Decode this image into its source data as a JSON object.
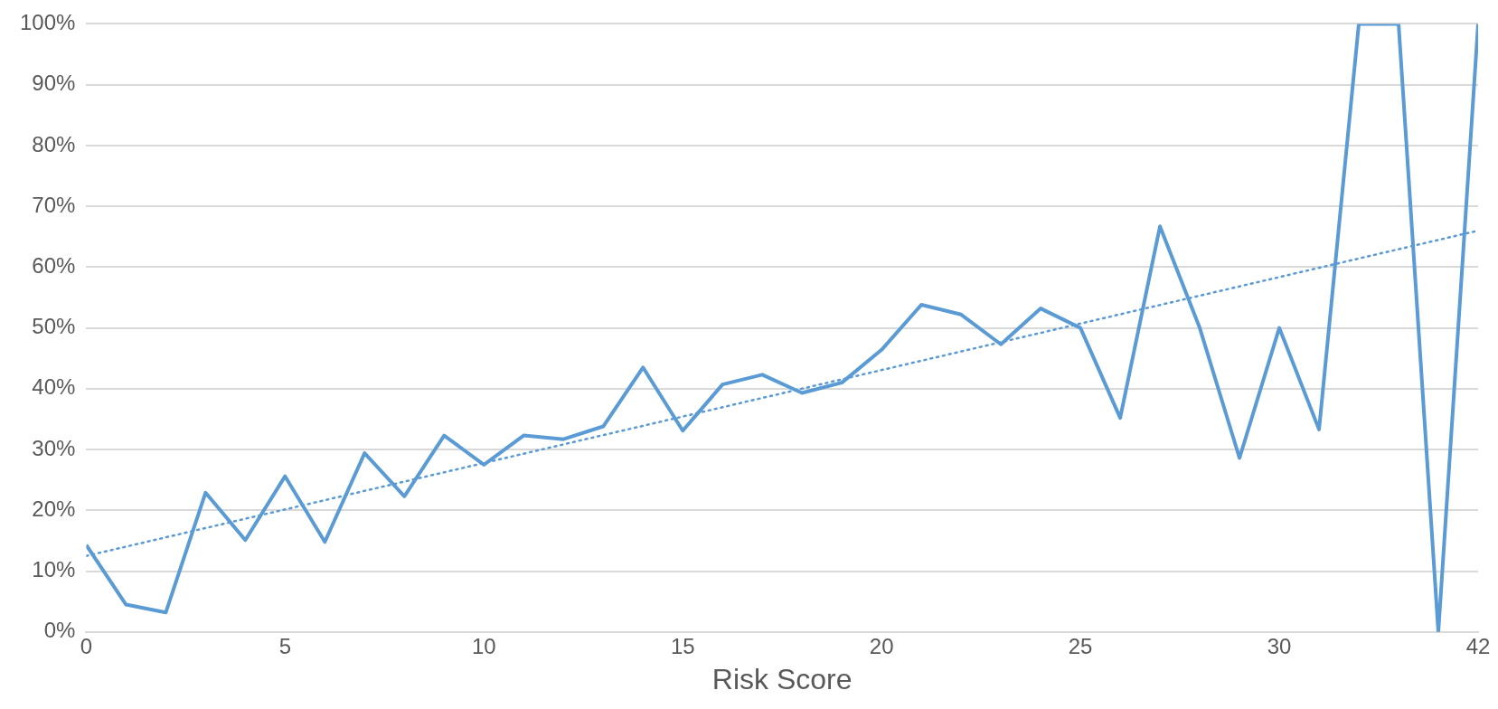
{
  "chart_data": {
    "type": "line",
    "xlabel": "Risk Score",
    "categories": [
      "0",
      null,
      null,
      null,
      null,
      "5",
      null,
      null,
      null,
      null,
      "10",
      null,
      null,
      null,
      null,
      "15",
      null,
      null,
      null,
      null,
      "20",
      null,
      null,
      null,
      null,
      "25",
      null,
      null,
      null,
      null,
      "30",
      null,
      null,
      null,
      null,
      "42"
    ],
    "series": [
      {
        "color": "#5b9bd5",
        "values": [
          14.3,
          4.5,
          3.2,
          22.9,
          15.1,
          25.6,
          14.8,
          29.4,
          22.3,
          32.3,
          27.5,
          32.3,
          31.7,
          33.8,
          43.5,
          33.1,
          40.7,
          42.3,
          39.3,
          41.0,
          46.4,
          53.8,
          52.2,
          47.3,
          53.2,
          50.0,
          35.2,
          66.7,
          50.0,
          28.6,
          50.0,
          33.3,
          100,
          100,
          0,
          100
        ],
        "line_style": "solid"
      },
      {
        "type": "line",
        "color": "#5b9bd5",
        "x": [
          "0",
          "42"
        ],
        "values": [
          12.5,
          66
        ],
        "line_style": "dotted"
      }
    ],
    "ylim": [
      0,
      100
    ],
    "yticks": [
      {
        "value": 0,
        "label": "0%"
      },
      {
        "value": 10,
        "label": "10%"
      },
      {
        "value": 20,
        "label": "20%"
      },
      {
        "value": 30,
        "label": "30%"
      },
      {
        "value": 40,
        "label": "40%"
      },
      {
        "value": 50,
        "label": "50%"
      },
      {
        "value": 60,
        "label": "60%"
      },
      {
        "value": 70,
        "label": "70%"
      },
      {
        "value": 80,
        "label": "80%"
      },
      {
        "value": 90,
        "label": "90%"
      },
      {
        "value": 100,
        "label": "100%"
      }
    ],
    "grid": "y",
    "legend": false,
    "marker": "none"
  }
}
